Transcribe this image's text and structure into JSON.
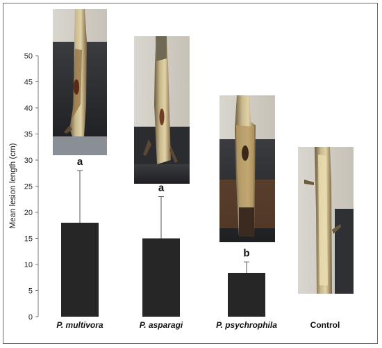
{
  "chart_data": {
    "type": "bar",
    "title": "",
    "xlabel": "",
    "ylabel": "Mean lesion length (cm)",
    "ylim": [
      0,
      50
    ],
    "yticks": [
      0,
      5,
      10,
      15,
      20,
      25,
      30,
      35,
      40,
      45,
      50
    ],
    "grid": false,
    "legend": "none",
    "categories": [
      "P. multivora",
      "P. asparagi",
      "P. psychrophila",
      "Control"
    ],
    "category_italic": [
      true,
      true,
      true,
      false
    ],
    "values": [
      18,
      15,
      8.4,
      0
    ],
    "error_upper": [
      28,
      23,
      10.5,
      null
    ],
    "significance_letters": [
      "a",
      "a",
      "b",
      ""
    ],
    "bar_color": "#262626"
  },
  "photos": [
    {
      "name": "stem-photo-p-multivora",
      "label": "stem lesion photo P. multivora"
    },
    {
      "name": "stem-photo-p-asparagi",
      "label": "stem lesion photo P. asparagi"
    },
    {
      "name": "stem-photo-p-psychrophila",
      "label": "stem lesion photo P. psychrophila"
    },
    {
      "name": "stem-photo-control",
      "label": "stem photo Control"
    }
  ]
}
